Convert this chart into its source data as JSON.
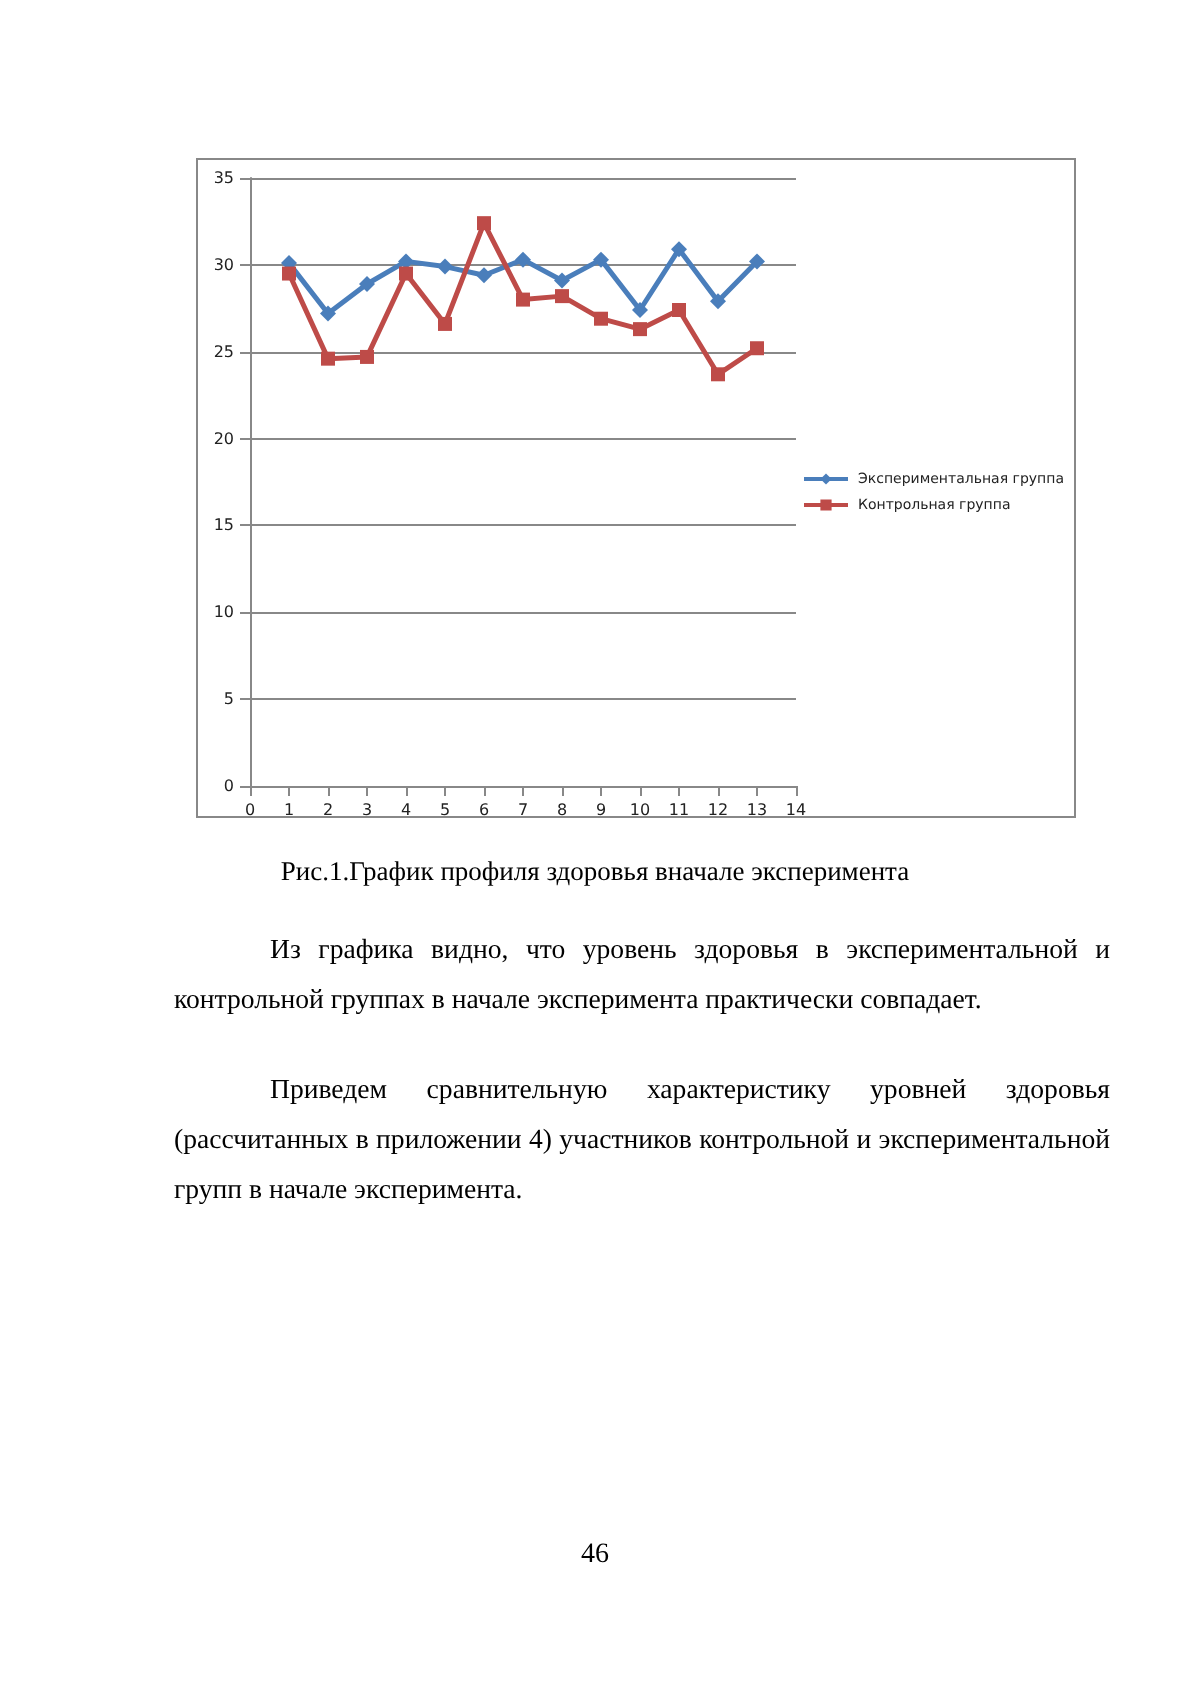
{
  "chart_data": {
    "type": "line",
    "title": "Рис.1.График профиля здоровья вначале эксперимента",
    "x": [
      1,
      2,
      3,
      4,
      5,
      6,
      7,
      8,
      9,
      10,
      11,
      12,
      13
    ],
    "series": [
      {
        "name": "Экспериментальная группа",
        "color": "#4a7ebb",
        "marker": "diamond",
        "values": [
          30.1,
          27.2,
          28.9,
          30.2,
          29.9,
          29.4,
          30.3,
          29.1,
          30.3,
          27.4,
          30.9,
          27.9,
          30.2
        ]
      },
      {
        "name": "Контрольная группа",
        "color": "#be4b48",
        "marker": "square",
        "values": [
          29.5,
          24.6,
          24.7,
          29.5,
          26.6,
          32.4,
          28.0,
          28.2,
          26.9,
          26.3,
          27.4,
          23.7,
          25.2
        ]
      }
    ],
    "xlim": [
      0,
      14
    ],
    "xticks": [
      0,
      1,
      2,
      3,
      4,
      5,
      6,
      7,
      8,
      9,
      10,
      11,
      12,
      13,
      14
    ],
    "ylim": [
      0,
      35
    ],
    "yticks": [
      0,
      5,
      10,
      15,
      20,
      25,
      30,
      35
    ],
    "grid": "y",
    "legend": "right",
    "line_style": "solid",
    "annotations": [
      "Из графика видно, что уровень здоровья в экспериментальной и контрольной группах в начале эксперимента практически совпадает.",
      "Приведем сравнительную характеристику уровней здоровья (рассчитанных в приложении 4) участников контрольной и экспериментальной групп в начале эксперимента.",
      "46"
    ]
  }
}
